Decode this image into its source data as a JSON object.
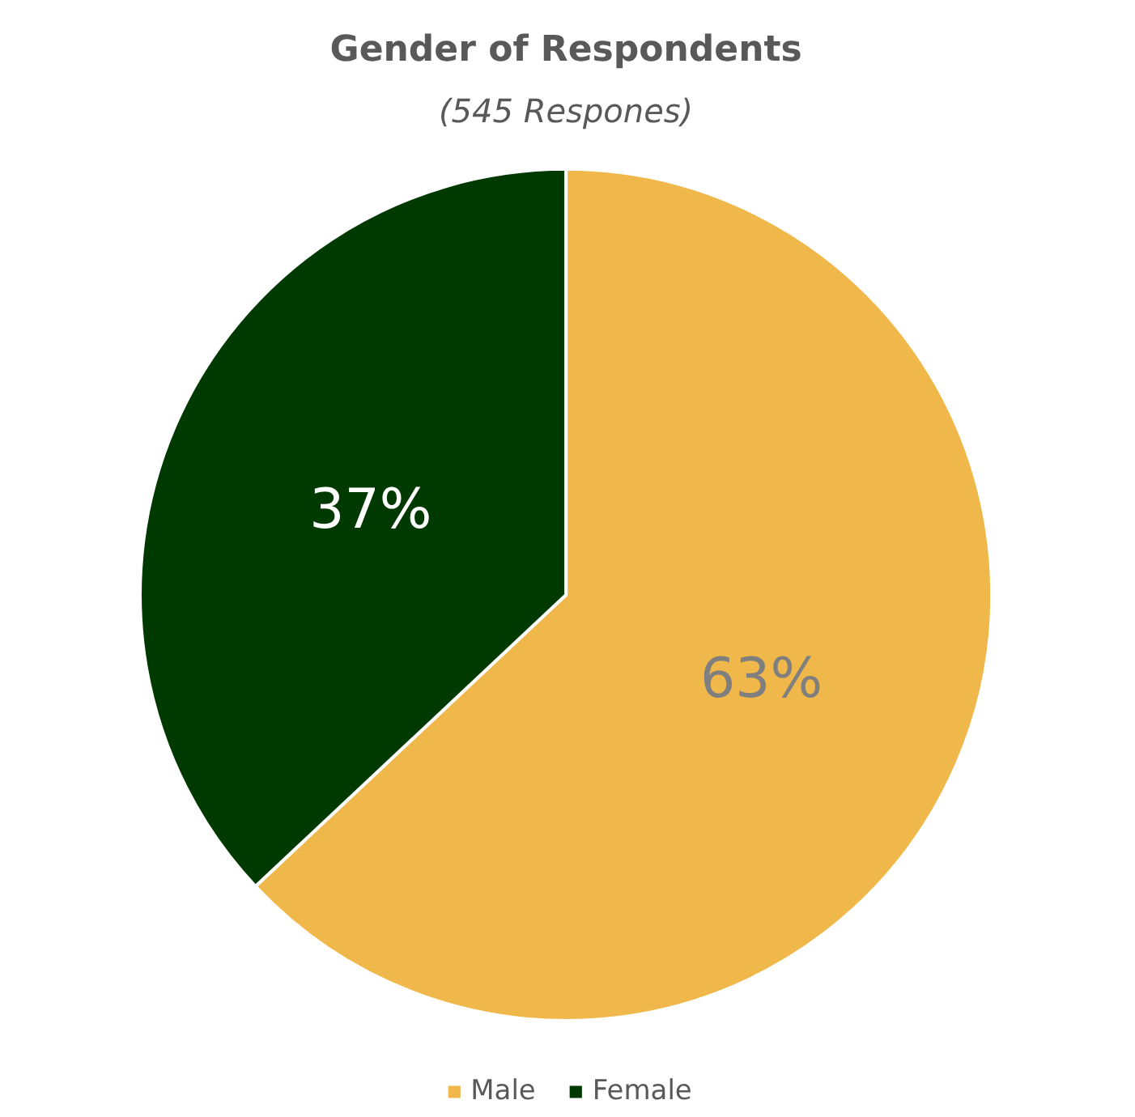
{
  "chart_data": {
    "type": "pie",
    "title": "Gender of Respondents",
    "subtitle": "(545 Respones)",
    "categories": [
      "Male",
      "Female"
    ],
    "values": [
      63,
      37
    ],
    "value_labels": [
      "63%",
      "37%"
    ],
    "colors": [
      "#f0b84a",
      "#003a00"
    ],
    "legend": "bottom"
  }
}
